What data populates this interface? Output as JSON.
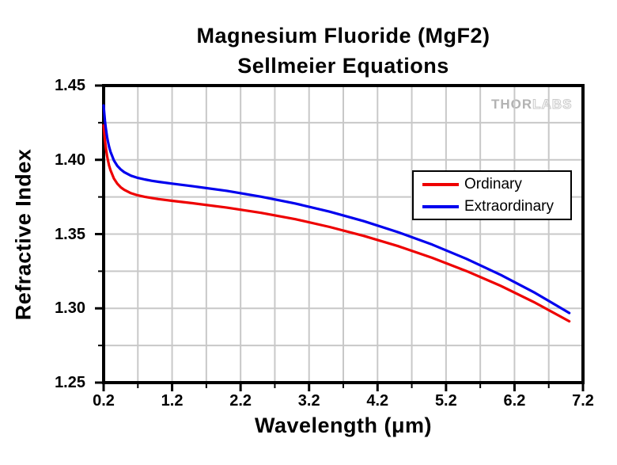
{
  "watermark": {
    "thor": "THOR",
    "labs": "LABS"
  },
  "chart_data": {
    "type": "line",
    "title_line1": "Magnesium Fluoride (MgF2)",
    "title_line2": "Sellmeier Equations",
    "xlabel": "Wavelength (μm)",
    "ylabel": "Refractive Index",
    "xlim": [
      0.2,
      7.2
    ],
    "ylim": [
      1.25,
      1.45
    ],
    "x_tick_labels": [
      "0.2",
      "1.2",
      "2.2",
      "3.2",
      "4.2",
      "5.2",
      "6.2",
      "7.2"
    ],
    "x_major_ticks": [
      0.2,
      1.2,
      2.2,
      3.2,
      4.2,
      5.2,
      6.2,
      7.2
    ],
    "x_minor_step": 0.5,
    "y_tick_labels": [
      "1.25",
      "1.30",
      "1.35",
      "1.40",
      "1.45"
    ],
    "y_major_ticks": [
      1.25,
      1.3,
      1.35,
      1.4,
      1.45
    ],
    "y_minor_step": 0.025,
    "grid": "on (major + minor, light gray)",
    "grid_color": "#c8c8c8",
    "frame_color": "#000000",
    "legend": {
      "position": "right-middle",
      "entries": [
        {
          "label": "Ordinary",
          "color": "#ee0000"
        },
        {
          "label": "Extraordinary",
          "color": "#0000ee"
        }
      ]
    },
    "x": [
      0.2,
      0.21,
      0.22,
      0.23,
      0.24,
      0.25,
      0.26,
      0.28,
      0.3,
      0.35,
      0.4,
      0.45,
      0.5,
      0.6,
      0.7,
      0.8,
      0.9,
      1.0,
      1.2,
      1.5,
      2.0,
      2.5,
      3.0,
      3.5,
      4.0,
      4.5,
      5.0,
      5.5,
      6.0,
      6.5,
      7.0
    ],
    "series": [
      {
        "name": "Ordinary",
        "color": "#ee0000",
        "values": [
          1.4231,
          1.4175,
          1.4129,
          1.409,
          1.4057,
          1.4028,
          1.4003,
          1.3962,
          1.393,
          1.3874,
          1.3839,
          1.3815,
          1.3798,
          1.3775,
          1.3761,
          1.3751,
          1.3743,
          1.3736,
          1.3724,
          1.3708,
          1.3678,
          1.3643,
          1.36,
          1.3548,
          1.3488,
          1.3419,
          1.334,
          1.3251,
          1.3151,
          1.3038,
          1.2913
        ]
      },
      {
        "name": "Extraordinary",
        "color": "#0000ee",
        "values": [
          1.4366,
          1.4309,
          1.4261,
          1.422,
          1.4186,
          1.4156,
          1.413,
          1.4088,
          1.4054,
          1.3996,
          1.3959,
          1.3935,
          1.3917,
          1.3893,
          1.3878,
          1.3868,
          1.3859,
          1.3852,
          1.384,
          1.3822,
          1.3791,
          1.3752,
          1.3706,
          1.3651,
          1.3587,
          1.3513,
          1.3429,
          1.3333,
          1.3225,
          1.3104,
          1.2969
        ]
      }
    ]
  }
}
